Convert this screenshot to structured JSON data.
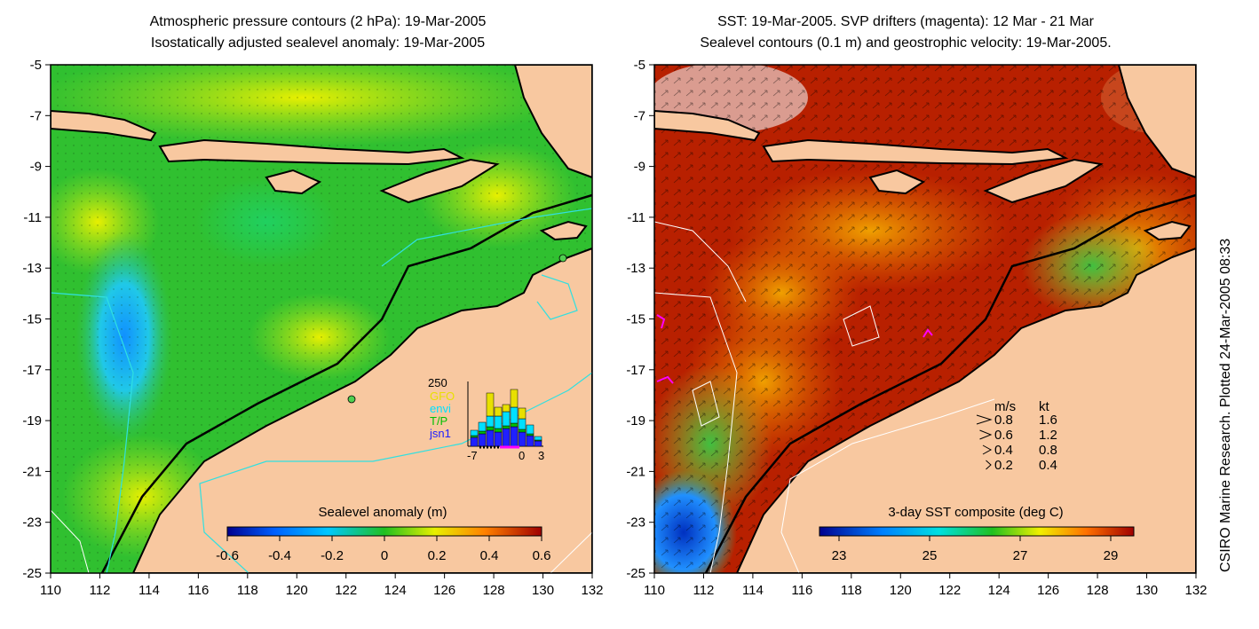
{
  "left_panel": {
    "title_line1": "Atmospheric pressure contours (2 hPa): 19-Mar-2005",
    "title_line2": "Isostatically adjusted sealevel anomaly: 19-Mar-2005",
    "colorbar_label": "Sealevel anomaly (m)",
    "colorbar_ticks": [
      "-0.6",
      "-0.4",
      "-0.2",
      "0",
      "0.2",
      "0.4",
      "0.6"
    ],
    "inset": {
      "ymax_label": "250",
      "legend": [
        {
          "name": "GFO",
          "color": "#e8e000"
        },
        {
          "name": "envi",
          "color": "#00e0ff"
        },
        {
          "name": "T/P",
          "color": "#00c000"
        },
        {
          "name": "jsn1",
          "color": "#2020ff"
        }
      ],
      "x_ticks": [
        "-7",
        "0",
        "3"
      ]
    }
  },
  "right_panel": {
    "title_line1": "SST: 19-Mar-2005. SVP drifters (magenta): 12 Mar - 21 Mar",
    "title_line2": "Sealevel contours (0.1 m) and geostrophic velocity: 19-Mar-2005.",
    "colorbar_label": "3-day SST composite (deg C)",
    "colorbar_ticks": [
      "23",
      "25",
      "27",
      "29"
    ],
    "velocity_legend": {
      "header_ms": "m/s",
      "header_kt": "kt",
      "rows": [
        {
          "ms": "0.8",
          "kt": "1.6"
        },
        {
          "ms": "0.6",
          "kt": "1.2"
        },
        {
          "ms": "0.4",
          "kt": "0.8"
        },
        {
          "ms": "0.2",
          "kt": "0.4"
        }
      ]
    }
  },
  "axes": {
    "lat_ticks": [
      "-5",
      "-7",
      "-9",
      "-11",
      "-13",
      "-15",
      "-17",
      "-19",
      "-21",
      "-23",
      "-25"
    ],
    "lon_ticks": [
      "110",
      "112",
      "114",
      "116",
      "118",
      "120",
      "122",
      "124",
      "126",
      "128",
      "130",
      "132"
    ]
  },
  "credit": "CSIRO Marine Research. Plotted 24-Mar-2005 08:33",
  "colors": {
    "land": "#f8c8a0",
    "sea_green": "#22c022",
    "sst_warm": "#b01800",
    "contour_cyan": "#30e0e0"
  }
}
